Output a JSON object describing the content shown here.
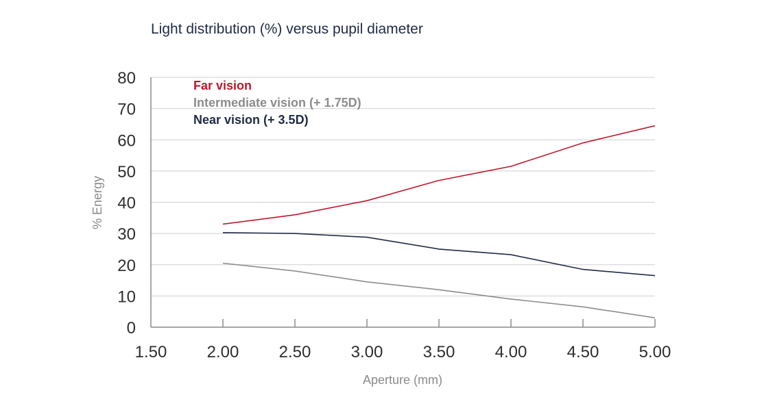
{
  "chart_data": {
    "type": "line",
    "title": "Light distribution (%) versus pupil diameter",
    "xlabel": "Aperture (mm)",
    "ylabel": "% Energy",
    "xlim": [
      1.5,
      5.0
    ],
    "ylim": [
      0,
      80
    ],
    "x_ticks": [
      "1.50",
      "2.00",
      "2.50",
      "3.00",
      "3.50",
      "4.00",
      "4.50",
      "5.00"
    ],
    "y_ticks": [
      "0",
      "10",
      "20",
      "30",
      "40",
      "50",
      "60",
      "70",
      "80"
    ],
    "grid": true,
    "legend_position": "top-left",
    "x": [
      2.0,
      2.5,
      3.0,
      3.5,
      4.0,
      4.5,
      5.0
    ],
    "series": [
      {
        "name": "Far vision",
        "color": "#c0172b",
        "values": [
          33,
          36,
          40.5,
          47,
          51.5,
          59,
          64.5
        ]
      },
      {
        "name": "Intermediate vision (+ 1.75D)",
        "color": "#8c8c8c",
        "values": [
          20.5,
          18,
          14.5,
          12,
          9,
          6.5,
          3
        ]
      },
      {
        "name": "Near vision (+ 3.5D)",
        "color": "#1f2a44",
        "values": [
          30.3,
          30,
          28.8,
          25,
          23.2,
          18.5,
          16.5
        ]
      }
    ]
  }
}
